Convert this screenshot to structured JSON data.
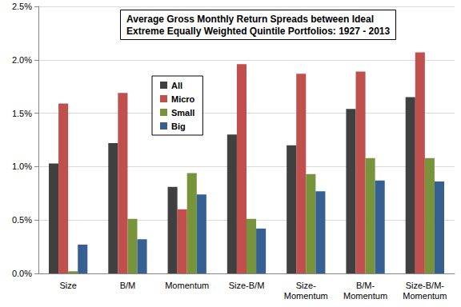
{
  "chart_data": {
    "type": "bar",
    "title": "Average Gross Monthly Return Spreads between Ideal\nExtreme Equally Weighted Quintile Portfolios: 1927 - 2013",
    "categories": [
      "Size",
      "B/M",
      "Momentum",
      "Size-B/M",
      "Size-\nMomentum",
      "B/M-\nMomentum",
      "Size-B/M-\nMomentum"
    ],
    "series": [
      {
        "name": "All",
        "color": "#404040",
        "values": [
          1.03,
          1.22,
          0.81,
          1.3,
          1.2,
          1.54,
          1.65
        ]
      },
      {
        "name": "Micro",
        "color": "#c0504d",
        "values": [
          1.59,
          1.69,
          0.6,
          1.96,
          1.87,
          1.89,
          2.07
        ]
      },
      {
        "name": "Small",
        "color": "#77933c",
        "values": [
          0.02,
          0.51,
          0.94,
          0.51,
          0.93,
          1.08,
          1.08
        ]
      },
      {
        "name": "Big",
        "color": "#376092",
        "values": [
          0.27,
          0.32,
          0.74,
          0.42,
          0.77,
          0.87,
          0.86
        ]
      }
    ],
    "ylim": [
      0,
      2.5
    ],
    "yticks": [
      {
        "value": 0,
        "label": "0.0%"
      },
      {
        "value": 0.5,
        "label": "0.5%"
      },
      {
        "value": 1.0,
        "label": "1.0%"
      },
      {
        "value": 1.5,
        "label": "1.5%"
      },
      {
        "value": 2.0,
        "label": "2.0%"
      },
      {
        "value": 2.5,
        "label": "2.5%"
      }
    ],
    "grid": true,
    "legend": "upper left"
  }
}
